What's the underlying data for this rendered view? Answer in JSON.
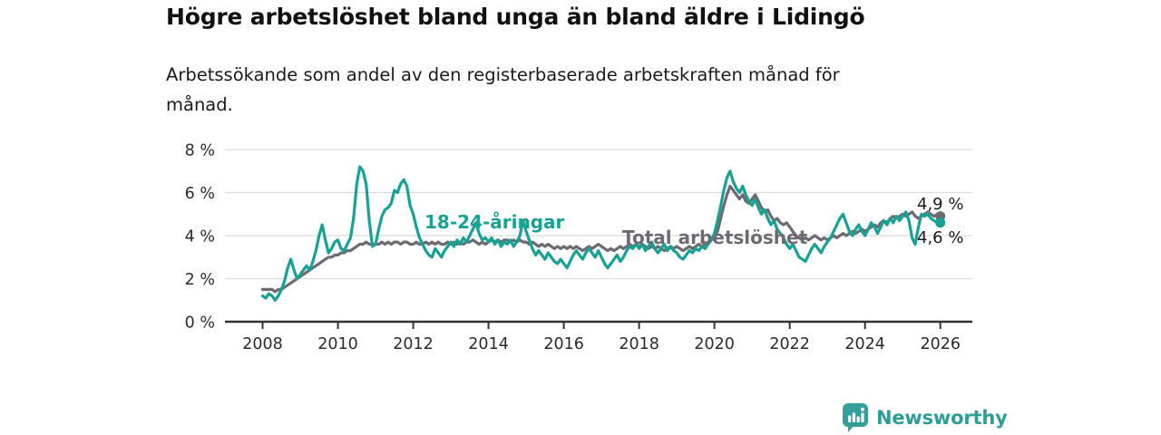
{
  "chart_data": {
    "type": "line",
    "title": "Högre arbetslöshet bland unga än bland äldre i Lidingö",
    "subtitle": "Arbetssökande som andel av den registerbaserade arbetskraften månad för\nmånad.",
    "xlabel": "",
    "ylabel": "",
    "ylim": [
      0,
      8
    ],
    "xlim": [
      2007.0,
      2026.85
    ],
    "grid": "horizontal-only",
    "legend": "inline-series-labels",
    "y_ticks": [
      0,
      2,
      4,
      6,
      8
    ],
    "y_tick_labels": [
      "0 %",
      "2 %",
      "4 %",
      "6 %",
      "8 %"
    ],
    "x_ticks": [
      2008,
      2010,
      2012,
      2014,
      2016,
      2018,
      2020,
      2022,
      2024,
      2026
    ],
    "x_tick_labels": [
      "2008",
      "2010",
      "2012",
      "2014",
      "2016",
      "2018",
      "2020",
      "2022",
      "2024",
      "2026"
    ],
    "x_start": 2008.0,
    "x_step_years": 0.0833333,
    "axis_color": "#333333",
    "gridline_color": "#dbdbdb",
    "series": [
      {
        "name": "Total arbetslöshet",
        "color": "#6e6a71",
        "end_label": "4,9 %",
        "end_value": 4.9,
        "values": [
          1.5,
          1.5,
          1.5,
          1.5,
          1.4,
          1.5,
          1.5,
          1.6,
          1.7,
          1.8,
          1.9,
          2.0,
          2.1,
          2.2,
          2.3,
          2.4,
          2.5,
          2.6,
          2.7,
          2.8,
          2.9,
          3.0,
          3.0,
          3.1,
          3.1,
          3.2,
          3.2,
          3.3,
          3.3,
          3.4,
          3.5,
          3.6,
          3.6,
          3.7,
          3.6,
          3.6,
          3.6,
          3.6,
          3.7,
          3.6,
          3.7,
          3.6,
          3.7,
          3.7,
          3.6,
          3.7,
          3.7,
          3.6,
          3.6,
          3.7,
          3.6,
          3.6,
          3.7,
          3.6,
          3.7,
          3.6,
          3.7,
          3.6,
          3.6,
          3.7,
          3.6,
          3.7,
          3.6,
          3.7,
          3.6,
          3.7,
          3.7,
          3.8,
          3.7,
          3.6,
          3.7,
          3.6,
          3.7,
          3.8,
          3.7,
          3.8,
          3.7,
          3.8,
          3.8,
          3.7,
          3.8,
          3.7,
          3.8,
          3.7,
          3.7,
          3.6,
          3.7,
          3.6,
          3.5,
          3.6,
          3.5,
          3.6,
          3.5,
          3.4,
          3.5,
          3.4,
          3.5,
          3.4,
          3.5,
          3.4,
          3.5,
          3.4,
          3.3,
          3.4,
          3.5,
          3.4,
          3.5,
          3.6,
          3.5,
          3.4,
          3.3,
          3.4,
          3.3,
          3.4,
          3.5,
          3.4,
          3.5,
          3.6,
          3.5,
          3.6,
          3.5,
          3.6,
          3.5,
          3.4,
          3.5,
          3.4,
          3.5,
          3.4,
          3.3,
          3.4,
          3.5,
          3.4,
          3.5,
          3.4,
          3.3,
          3.4,
          3.5,
          3.4,
          3.5,
          3.6,
          3.5,
          3.6,
          3.7,
          3.8,
          3.9,
          4.2,
          4.8,
          5.4,
          5.9,
          6.3,
          6.1,
          5.9,
          5.7,
          5.9,
          5.6,
          5.5,
          5.7,
          5.9,
          5.6,
          5.3,
          5.1,
          5.2,
          4.9,
          4.7,
          4.8,
          4.6,
          4.5,
          4.6,
          4.4,
          4.2,
          4.0,
          3.9,
          3.8,
          3.9,
          3.8,
          3.9,
          4.0,
          3.9,
          3.8,
          3.9,
          3.8,
          3.9,
          4.0,
          3.9,
          4.0,
          4.1,
          4.0,
          4.1,
          4.2,
          4.1,
          4.2,
          4.3,
          4.2,
          4.3,
          4.4,
          4.5,
          4.4,
          4.6,
          4.7,
          4.6,
          4.8,
          4.9,
          4.8,
          4.9,
          5.0,
          4.9,
          5.0,
          5.1,
          4.9,
          4.8,
          4.9,
          5.0,
          5.1,
          5.0,
          4.9,
          5.0,
          4.9
        ]
      },
      {
        "name": "18-24-åringar",
        "color": "#17a294",
        "end_label": "4,6 %",
        "end_value": 4.6,
        "values": [
          1.2,
          1.1,
          1.3,
          1.2,
          1.0,
          1.2,
          1.5,
          1.9,
          2.5,
          2.9,
          2.4,
          2.0,
          2.2,
          2.4,
          2.6,
          2.4,
          2.8,
          3.3,
          4.0,
          4.5,
          3.8,
          3.2,
          3.4,
          3.7,
          3.8,
          3.4,
          3.3,
          3.6,
          3.9,
          4.8,
          6.4,
          7.2,
          7.0,
          6.4,
          4.7,
          3.5,
          3.6,
          4.3,
          4.9,
          5.2,
          5.3,
          5.5,
          6.1,
          6.0,
          6.4,
          6.6,
          6.3,
          5.4,
          5.0,
          4.4,
          3.9,
          3.6,
          3.3,
          3.1,
          3.0,
          3.4,
          3.2,
          3.0,
          3.3,
          3.5,
          3.7,
          3.5,
          3.8,
          3.6,
          3.9,
          3.7,
          4.0,
          4.3,
          4.6,
          4.1,
          3.8,
          3.9,
          3.7,
          3.9,
          3.6,
          3.8,
          3.5,
          3.7,
          3.6,
          3.8,
          3.5,
          3.7,
          4.0,
          4.7,
          4.2,
          3.8,
          3.4,
          3.1,
          3.3,
          3.1,
          2.9,
          3.2,
          3.0,
          2.8,
          2.7,
          2.9,
          2.7,
          2.5,
          2.8,
          3.1,
          3.3,
          3.1,
          2.9,
          3.2,
          3.4,
          3.2,
          3.0,
          3.3,
          3.0,
          2.7,
          2.5,
          2.7,
          2.9,
          3.1,
          2.8,
          3.0,
          3.3,
          3.5,
          3.4,
          3.6,
          3.4,
          3.6,
          3.3,
          3.5,
          3.7,
          3.4,
          3.2,
          3.4,
          3.6,
          3.3,
          3.5,
          3.3,
          3.2,
          3.0,
          2.9,
          3.1,
          3.3,
          3.2,
          3.4,
          3.3,
          3.5,
          3.4,
          3.6,
          3.8,
          4.1,
          4.7,
          5.4,
          6.1,
          6.7,
          7.0,
          6.5,
          6.2,
          6.0,
          6.3,
          5.9,
          5.6,
          5.4,
          5.7,
          5.3,
          5.0,
          5.2,
          4.8,
          4.5,
          4.7,
          4.3,
          4.1,
          3.9,
          3.6,
          3.4,
          3.6,
          3.3,
          3.0,
          2.9,
          2.8,
          3.1,
          3.4,
          3.6,
          3.4,
          3.2,
          3.5,
          3.7,
          3.9,
          4.2,
          4.5,
          4.8,
          5.0,
          4.6,
          4.2,
          4.0,
          4.3,
          4.5,
          4.2,
          4.0,
          4.3,
          4.6,
          4.4,
          4.1,
          4.4,
          4.7,
          4.5,
          4.8,
          4.6,
          4.9,
          4.7,
          4.9,
          5.1,
          4.7,
          3.9,
          3.6,
          4.4,
          5.0,
          4.9,
          5.0,
          4.8,
          4.7,
          4.6,
          4.6
        ]
      }
    ]
  },
  "branding": {
    "logo_text": "Newsworthy",
    "logo_icon": "newsworthy-bar-chart-bubble-icon",
    "color": "#2f9d95"
  }
}
